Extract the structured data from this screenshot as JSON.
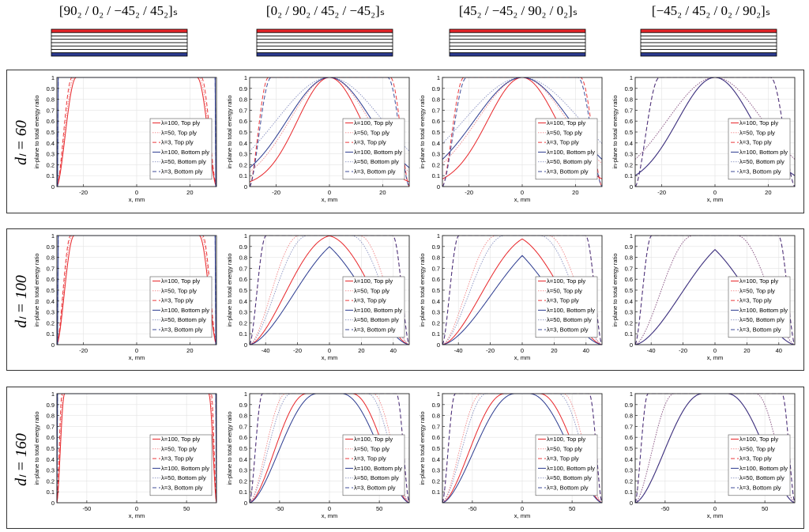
{
  "columns": [
    {
      "title": "[90₂ / 0₂ / −45₂ / 45₂]ₛ",
      "layup": [
        "90",
        "0",
        "-45",
        "45",
        "45",
        "-45",
        "0",
        "90"
      ]
    },
    {
      "title": "[0₂ / 90₂ / 45₂ / −45₂]ₛ",
      "layup": [
        "0",
        "90",
        "45",
        "-45",
        "-45",
        "45",
        "90",
        "0"
      ]
    },
    {
      "title": "[45₂ / −45₂ / 90₂ / 0₂]ₛ",
      "layup": [
        "45",
        "-45",
        "90",
        "0",
        "0",
        "90",
        "-45",
        "45"
      ]
    },
    {
      "title": "[−45₂ / 45₂ / 0₂ / 90₂]ₛ",
      "layup": [
        "-45",
        "45",
        "0",
        "90",
        "90",
        "0",
        "45",
        "-45"
      ]
    }
  ],
  "rows": [
    {
      "label": "dₗ = 60"
    },
    {
      "label": "dₗ = 100"
    },
    {
      "label": "dₗ = 160"
    }
  ],
  "colors": {
    "top_ply": "#e8262a",
    "bottom_ply": "#2b3a8f",
    "grid": "#e3e3e3"
  },
  "chart_data": [
    {
      "type": "line",
      "row": 0,
      "col": 0,
      "xlabel": "x, mm",
      "ylabel": "in-plane to total energy ratio",
      "xlim": [
        -30,
        30
      ],
      "ylim": [
        0,
        1
      ],
      "xticks": [
        -20,
        0,
        20
      ],
      "yticks": [
        0,
        0.1,
        0.2,
        0.3,
        0.4,
        0.5,
        0.6,
        0.7,
        0.8,
        0.9,
        1
      ],
      "ytick_labels": [
        "0",
        "0.1",
        "0.2",
        "0.3",
        "0.4",
        "0.5",
        "0.6",
        "0.7",
        "0.8",
        "0.9",
        "1"
      ],
      "shape": "plateau",
      "params": {
        "top": [
          2.8,
          2.5,
          2.2
        ],
        "bottom": [
          0.05,
          0.05,
          0.05
        ]
      },
      "series": [
        {
          "name": "λ=100, Top ply"
        },
        {
          "name": "λ=50, Top ply"
        },
        {
          "name": "λ=3, Top ply"
        },
        {
          "name": "λ=100, Bottom ply"
        },
        {
          "name": "λ=50, Bottom ply"
        },
        {
          "name": "λ=3, Bottom ply"
        }
      ]
    },
    {
      "type": "line",
      "row": 0,
      "col": 1,
      "xlabel": "x, mm",
      "ylabel": "in-plane to total energy ratio",
      "xlim": [
        -30,
        30
      ],
      "ylim": [
        0,
        1
      ],
      "xticks": [
        -20,
        0,
        20
      ],
      "yticks": [
        0,
        0.1,
        0.2,
        0.3,
        0.4,
        0.5,
        0.6,
        0.7,
        0.8,
        0.9,
        1
      ],
      "ytick_labels": [
        "0",
        "0.1",
        "0.2",
        "0.3",
        "0.4",
        "0.5",
        "0.6",
        "0.7",
        "0.8",
        "0.9",
        "1"
      ],
      "shape": "bell",
      "params": {
        "top": [
          12,
          15,
          21
        ],
        "bottom": [
          16,
          20,
          24
        ]
      },
      "series": [
        {
          "name": "λ=100, Top ply"
        },
        {
          "name": "λ=50, Top ply"
        },
        {
          "name": "λ=3, Top ply"
        },
        {
          "name": "λ=100, Bottom ply"
        },
        {
          "name": "λ=50, Bottom ply"
        },
        {
          "name": "λ=3, Bottom ply"
        }
      ]
    },
    {
      "type": "line",
      "row": 0,
      "col": 2,
      "xlabel": "x, mm",
      "ylabel": "in-plane to total energy ratio",
      "xlim": [
        -30,
        30
      ],
      "ylim": [
        0,
        1
      ],
      "xticks": [
        -20,
        0,
        20
      ],
      "yticks": [
        0,
        0.1,
        0.2,
        0.3,
        0.4,
        0.5,
        0.6,
        0.7,
        0.8,
        0.9,
        1
      ],
      "ytick_labels": [
        "0",
        "0.1",
        "0.2",
        "0.3",
        "0.4",
        "0.5",
        "0.6",
        "0.7",
        "0.8",
        "0.9",
        "1"
      ],
      "shape": "bell",
      "params": {
        "top": [
          13,
          17,
          24
        ],
        "bottom": [
          18,
          22,
          27
        ]
      },
      "series": [
        {
          "name": "λ=100, Top ply"
        },
        {
          "name": "λ=50, Top ply"
        },
        {
          "name": "λ=3, Top ply"
        },
        {
          "name": "λ=100, Bottom ply"
        },
        {
          "name": "λ=50, Bottom ply"
        },
        {
          "name": "λ=3, Bottom ply"
        }
      ]
    },
    {
      "type": "line",
      "row": 0,
      "col": 3,
      "xlabel": "x, mm",
      "ylabel": "in-plane to total energy ratio",
      "xlim": [
        -30,
        30
      ],
      "ylim": [
        0,
        1
      ],
      "xticks": [
        -20,
        0,
        20
      ],
      "yticks": [
        0,
        0.1,
        0.2,
        0.3,
        0.4,
        0.5,
        0.6,
        0.7,
        0.8,
        0.9,
        1
      ],
      "ytick_labels": [
        "0",
        "0.1",
        "0.2",
        "0.3",
        "0.4",
        "0.5",
        "0.6",
        "0.7",
        "0.8",
        "0.9",
        "1"
      ],
      "shape": "bell",
      "params": {
        "top": [
          14,
          18,
          27
        ],
        "bottom": [
          14,
          18,
          27
        ]
      },
      "series": [
        {
          "name": "λ=100, Top ply"
        },
        {
          "name": "λ=50, Top ply"
        },
        {
          "name": "λ=3, Top ply"
        },
        {
          "name": "λ=100, Bottom ply"
        },
        {
          "name": "λ=50, Bottom ply"
        },
        {
          "name": "λ=3, Bottom ply"
        }
      ]
    },
    {
      "type": "line",
      "row": 1,
      "col": 0,
      "xlabel": "x, mm",
      "ylabel": "in-plane to total energy ratio",
      "xlim": [
        -30,
        30
      ],
      "ylim": [
        0,
        1
      ],
      "xticks": [
        -20,
        0,
        20
      ],
      "yticks": [
        0,
        0.1,
        0.2,
        0.3,
        0.4,
        0.5,
        0.6,
        0.7,
        0.8,
        0.9,
        1
      ],
      "ytick_labels": [
        "0",
        "0.1",
        "0.2",
        "0.3",
        "0.4",
        "0.5",
        "0.6",
        "0.7",
        "0.8",
        "0.9",
        "1"
      ],
      "shape": "plateau",
      "params": {
        "top": [
          2.5,
          2.2,
          2.0
        ],
        "bottom": [
          0.05,
          0.05,
          0.05
        ]
      },
      "series": [
        {
          "name": "λ=100, Top ply"
        },
        {
          "name": "λ=50, Top ply"
        },
        {
          "name": "λ=3, Top ply"
        },
        {
          "name": "λ=100, Bottom ply"
        },
        {
          "name": "λ=50, Bottom ply"
        },
        {
          "name": "λ=3, Bottom ply"
        }
      ]
    },
    {
      "type": "line",
      "row": 1,
      "col": 1,
      "xlabel": "x, mm",
      "ylabel": "in-plane to total energy ratio",
      "xlim": [
        -50,
        50
      ],
      "ylim": [
        0,
        1
      ],
      "xticks": [
        -40,
        -20,
        0,
        20,
        40
      ],
      "yticks": [
        0,
        0.1,
        0.2,
        0.3,
        0.4,
        0.5,
        0.6,
        0.7,
        0.8,
        0.9,
        1
      ],
      "ytick_labels": [
        "0",
        "0.1",
        "0.2",
        "0.3",
        "0.4",
        "0.5",
        "0.6",
        "0.7",
        "0.8",
        "0.9",
        "1"
      ],
      "shape": "plateau",
      "params": {
        "top": [
          20,
          12,
          4
        ],
        "bottom": [
          25,
          14,
          4
        ]
      },
      "series": [
        {
          "name": "λ=100, Top ply"
        },
        {
          "name": "λ=50, Top ply"
        },
        {
          "name": "λ=3, Top ply"
        },
        {
          "name": "λ=100, Bottom ply"
        },
        {
          "name": "λ=50, Bottom ply"
        },
        {
          "name": "λ=3, Bottom ply"
        }
      ]
    },
    {
      "type": "line",
      "row": 1,
      "col": 2,
      "xlabel": "x, mm",
      "ylabel": "in-plane to total energy ratio",
      "xlim": [
        -50,
        50
      ],
      "ylim": [
        0,
        1
      ],
      "xticks": [
        -40,
        -20,
        0,
        20,
        40
      ],
      "yticks": [
        0,
        0.1,
        0.2,
        0.3,
        0.4,
        0.5,
        0.6,
        0.7,
        0.8,
        0.9,
        1
      ],
      "ytick_labels": [
        "0",
        "0.1",
        "0.2",
        "0.3",
        "0.4",
        "0.5",
        "0.6",
        "0.7",
        "0.8",
        "0.9",
        "1"
      ],
      "shape": "plateau",
      "params": {
        "top": [
          22,
          13,
          4
        ],
        "bottom": [
          28,
          15,
          4
        ]
      },
      "series": [
        {
          "name": "λ=100, Top ply"
        },
        {
          "name": "λ=50, Top ply"
        },
        {
          "name": "λ=3, Top ply"
        },
        {
          "name": "λ=100, Bottom ply"
        },
        {
          "name": "λ=50, Bottom ply"
        },
        {
          "name": "λ=3, Bottom ply"
        }
      ]
    },
    {
      "type": "line",
      "row": 1,
      "col": 3,
      "xlabel": "x, mm",
      "ylabel": "in-plane to total energy ratio",
      "xlim": [
        -50,
        50
      ],
      "ylim": [
        0,
        1
      ],
      "xticks": [
        -40,
        -20,
        0,
        20,
        40
      ],
      "yticks": [
        0,
        0.1,
        0.2,
        0.3,
        0.4,
        0.5,
        0.6,
        0.7,
        0.8,
        0.9,
        1
      ],
      "ytick_labels": [
        "0",
        "0.1",
        "0.2",
        "0.3",
        "0.4",
        "0.5",
        "0.6",
        "0.7",
        "0.8",
        "0.9",
        "1"
      ],
      "shape": "plateau",
      "params": {
        "top": [
          26,
          14,
          4
        ],
        "bottom": [
          26,
          14,
          4
        ]
      },
      "series": [
        {
          "name": "λ=100, Top ply"
        },
        {
          "name": "λ=50, Top ply"
        },
        {
          "name": "λ=3, Top ply"
        },
        {
          "name": "λ=100, Bottom ply"
        },
        {
          "name": "λ=50, Bottom ply"
        },
        {
          "name": "λ=3, Bottom ply"
        }
      ]
    },
    {
      "type": "line",
      "row": 2,
      "col": 0,
      "xlabel": "x, mm",
      "ylabel": "in-plane to total energy ratio",
      "xlim": [
        -80,
        80
      ],
      "ylim": [
        0,
        1
      ],
      "xticks": [
        -50,
        0,
        50
      ],
      "yticks": [
        0,
        0.1,
        0.2,
        0.3,
        0.4,
        0.5,
        0.6,
        0.7,
        0.8,
        0.9,
        1
      ],
      "ytick_labels": [
        "0",
        "0.1",
        "0.2",
        "0.3",
        "0.4",
        "0.5",
        "0.6",
        "0.7",
        "0.8",
        "0.9",
        "1"
      ],
      "shape": "plateau",
      "params": {
        "top": [
          3,
          2.5,
          2
        ],
        "bottom": [
          0.05,
          0.05,
          0.05
        ]
      },
      "series": [
        {
          "name": "λ=100, Top ply"
        },
        {
          "name": "λ=50, Top ply"
        },
        {
          "name": "λ=3, Top ply"
        },
        {
          "name": "λ=100, Bottom ply"
        },
        {
          "name": "λ=50, Bottom ply"
        },
        {
          "name": "λ=3, Bottom ply"
        }
      ]
    },
    {
      "type": "line",
      "row": 2,
      "col": 1,
      "xlabel": "x, mm",
      "ylabel": "in-plane to total energy ratio",
      "xlim": [
        -80,
        80
      ],
      "ylim": [
        0,
        1
      ],
      "xticks": [
        -50,
        0,
        50
      ],
      "yticks": [
        0,
        0.1,
        0.2,
        0.3,
        0.4,
        0.5,
        0.6,
        0.7,
        0.8,
        0.9,
        1
      ],
      "ytick_labels": [
        "0",
        "0.1",
        "0.2",
        "0.3",
        "0.4",
        "0.5",
        "0.6",
        "0.7",
        "0.8",
        "0.9",
        "1"
      ],
      "shape": "plateau",
      "params": {
        "top": [
          22,
          14,
          5
        ],
        "bottom": [
          26,
          16,
          5
        ]
      },
      "series": [
        {
          "name": "λ=100, Top ply"
        },
        {
          "name": "λ=50, Top ply"
        },
        {
          "name": "λ=3, Top ply"
        },
        {
          "name": "λ=100, Bottom ply"
        },
        {
          "name": "λ=50, Bottom ply"
        },
        {
          "name": "λ=3, Bottom ply"
        }
      ]
    },
    {
      "type": "line",
      "row": 2,
      "col": 2,
      "xlabel": "x, mm",
      "ylabel": "in-plane to total energy ratio",
      "xlim": [
        -80,
        80
      ],
      "ylim": [
        0,
        1
      ],
      "xticks": [
        -50,
        0,
        50
      ],
      "yticks": [
        0.1,
        0.2,
        0.3,
        0.4,
        0.5,
        0.6,
        0.7,
        0.8,
        0.9,
        1
      ],
      "ytick_labels": [
        "0.1",
        "0.2",
        "0.3",
        "0.4",
        "0.5",
        "0.6",
        "0.7",
        "0.8",
        "0.9",
        "1"
      ],
      "shape": "plateau",
      "params": {
        "top": [
          24,
          15,
          5
        ],
        "bottom": [
          28,
          17,
          5
        ]
      },
      "series": [
        {
          "name": "λ=100, Top ply"
        },
        {
          "name": "λ=50, Top ply"
        },
        {
          "name": "λ=3, Top ply"
        },
        {
          "name": "λ=100, Bottom ply"
        },
        {
          "name": "λ=50, Bottom ply"
        },
        {
          "name": "λ=3, Bottom ply"
        }
      ]
    },
    {
      "type": "line",
      "row": 2,
      "col": 3,
      "xlabel": "x, mm",
      "ylabel": "",
      "xlim": [
        -80,
        80
      ],
      "ylim": [
        0,
        1
      ],
      "xticks": [
        -50,
        0,
        50
      ],
      "yticks": [
        0,
        0.1,
        0.2,
        0.3,
        0.4,
        0.5,
        0.6,
        0.7,
        0.8,
        0.9,
        1
      ],
      "ytick_labels": [
        "0",
        "0.1",
        "0.2",
        "0.3",
        "0.4",
        "0.5",
        "0.6",
        "0.7",
        "0.8",
        "0.9",
        "1"
      ],
      "shape": "plateau",
      "params": {
        "top": [
          26,
          15,
          5
        ],
        "bottom": [
          26,
          15,
          5
        ]
      },
      "series": [
        {
          "name": "λ=100, Top ply"
        },
        {
          "name": "λ=50, Top ply"
        },
        {
          "name": "λ=3, Top ply"
        },
        {
          "name": "λ=100, Bottom ply"
        },
        {
          "name": "λ=50, Bottom ply"
        },
        {
          "name": "λ=3, Bottom ply"
        }
      ]
    }
  ]
}
